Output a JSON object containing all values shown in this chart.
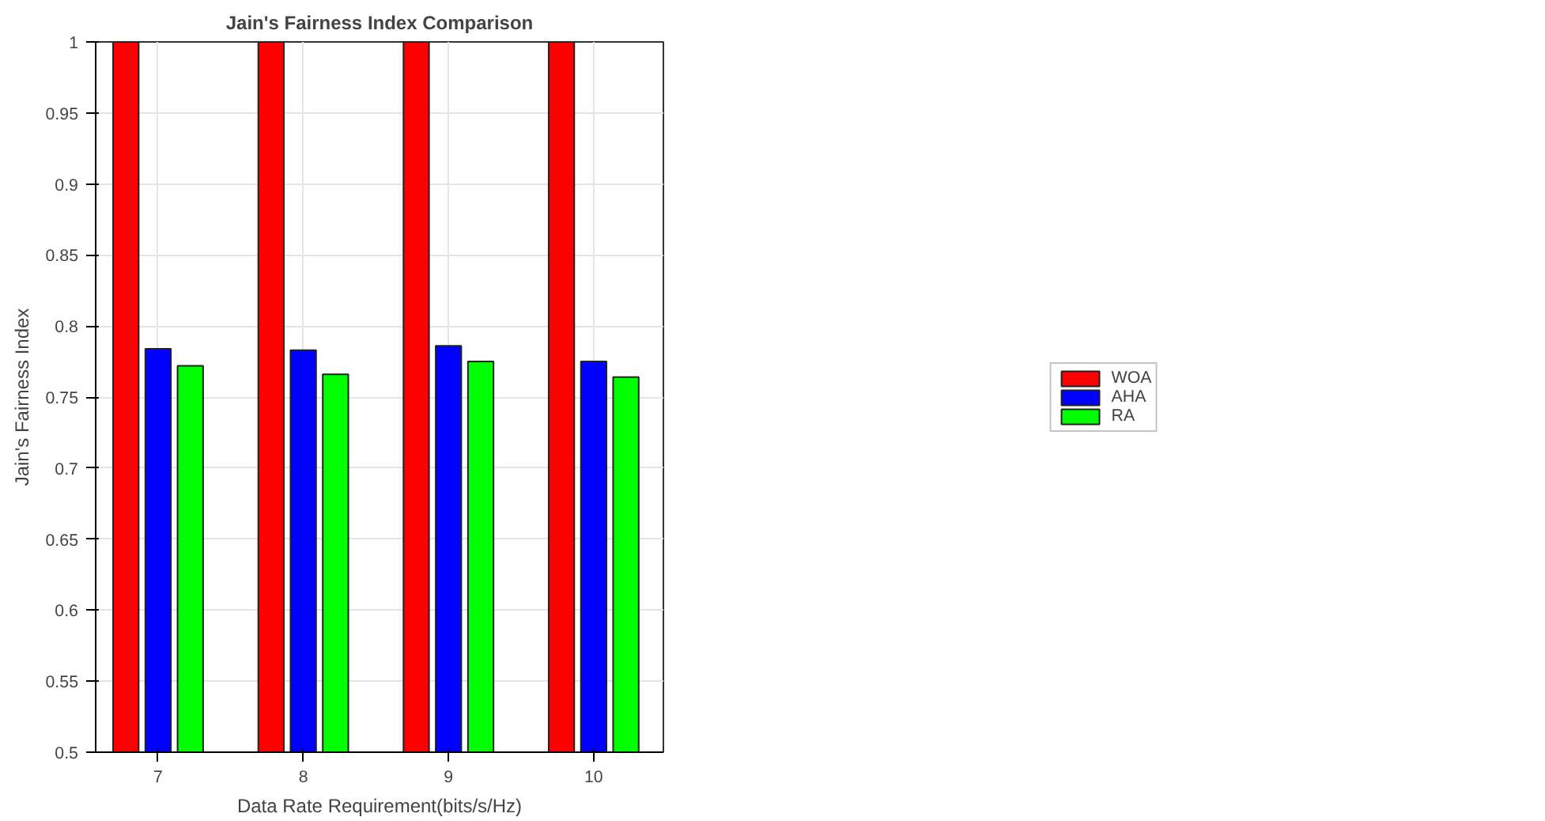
{
  "chart_data": {
    "type": "bar",
    "title": "Jain's Fairness Index Comparison",
    "xlabel": "Data Rate Requirement(bits/s/Hz)",
    "ylabel": "Jain's Fairness Index",
    "categories": [
      "7",
      "8",
      "9",
      "10"
    ],
    "series": [
      {
        "name": "WOA",
        "color": "#ff0000",
        "values": [
          1,
          1,
          1,
          1
        ]
      },
      {
        "name": "AHA",
        "color": "#0000ff",
        "values": [
          0.784,
          0.783,
          0.786,
          0.775
        ]
      },
      {
        "name": "RA",
        "color": "#00ff00",
        "values": [
          0.772,
          0.766,
          0.775,
          0.764
        ]
      }
    ],
    "ylim": [
      0.5,
      1
    ],
    "yticks": [
      0.5,
      0.55,
      0.6,
      0.65,
      0.7,
      0.75,
      0.8,
      0.85,
      0.9,
      0.95,
      1
    ],
    "grid": true,
    "legend": "right"
  }
}
